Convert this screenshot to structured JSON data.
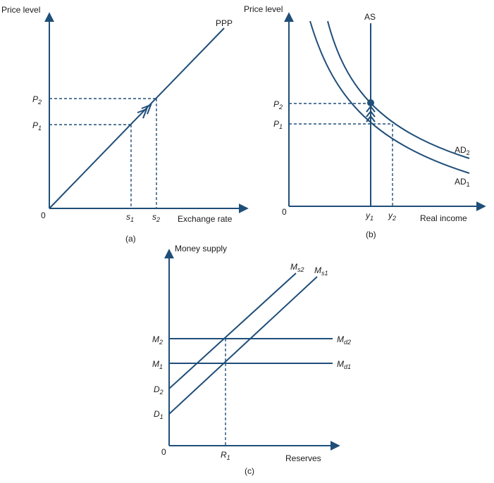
{
  "panel_a": {
    "caption": "(a)",
    "y_axis_label": "Price level",
    "x_axis_label": "Exchange rate",
    "origin": "0",
    "curve_label": "PPP",
    "p1": "P",
    "p1_sub": "1",
    "p2": "P",
    "p2_sub": "2",
    "s1": "s",
    "s1_sub": "1",
    "s2": "s",
    "s2_sub": "2"
  },
  "panel_b": {
    "caption": "(b)",
    "y_axis_label": "Price level",
    "x_axis_label": "Real income",
    "origin": "0",
    "as_label": "AS",
    "ad2": "AD",
    "ad2_sub": "2",
    "ad1": "AD",
    "ad1_sub": "1",
    "p1": "P",
    "p1_sub": "1",
    "p2": "P",
    "p2_sub": "2",
    "y1": "y",
    "y1_sub": "1",
    "y2": "y",
    "y2_sub": "2"
  },
  "panel_c": {
    "caption": "(c)",
    "y_axis_label": "Money supply",
    "x_axis_label": "Reserves",
    "origin": "0",
    "ms2": "M",
    "ms2_sub": "s2",
    "ms1": "M",
    "ms1_sub": "s1",
    "md2": "M",
    "md2_sub": "d2",
    "md1": "M",
    "md1_sub": "d1",
    "m2": "M",
    "m2_sub": "2",
    "m1": "M",
    "m1_sub": "1",
    "d2": "D",
    "d2_sub": "2",
    "d1": "D",
    "d1_sub": "1",
    "r1": "R",
    "r1_sub": "1"
  }
}
